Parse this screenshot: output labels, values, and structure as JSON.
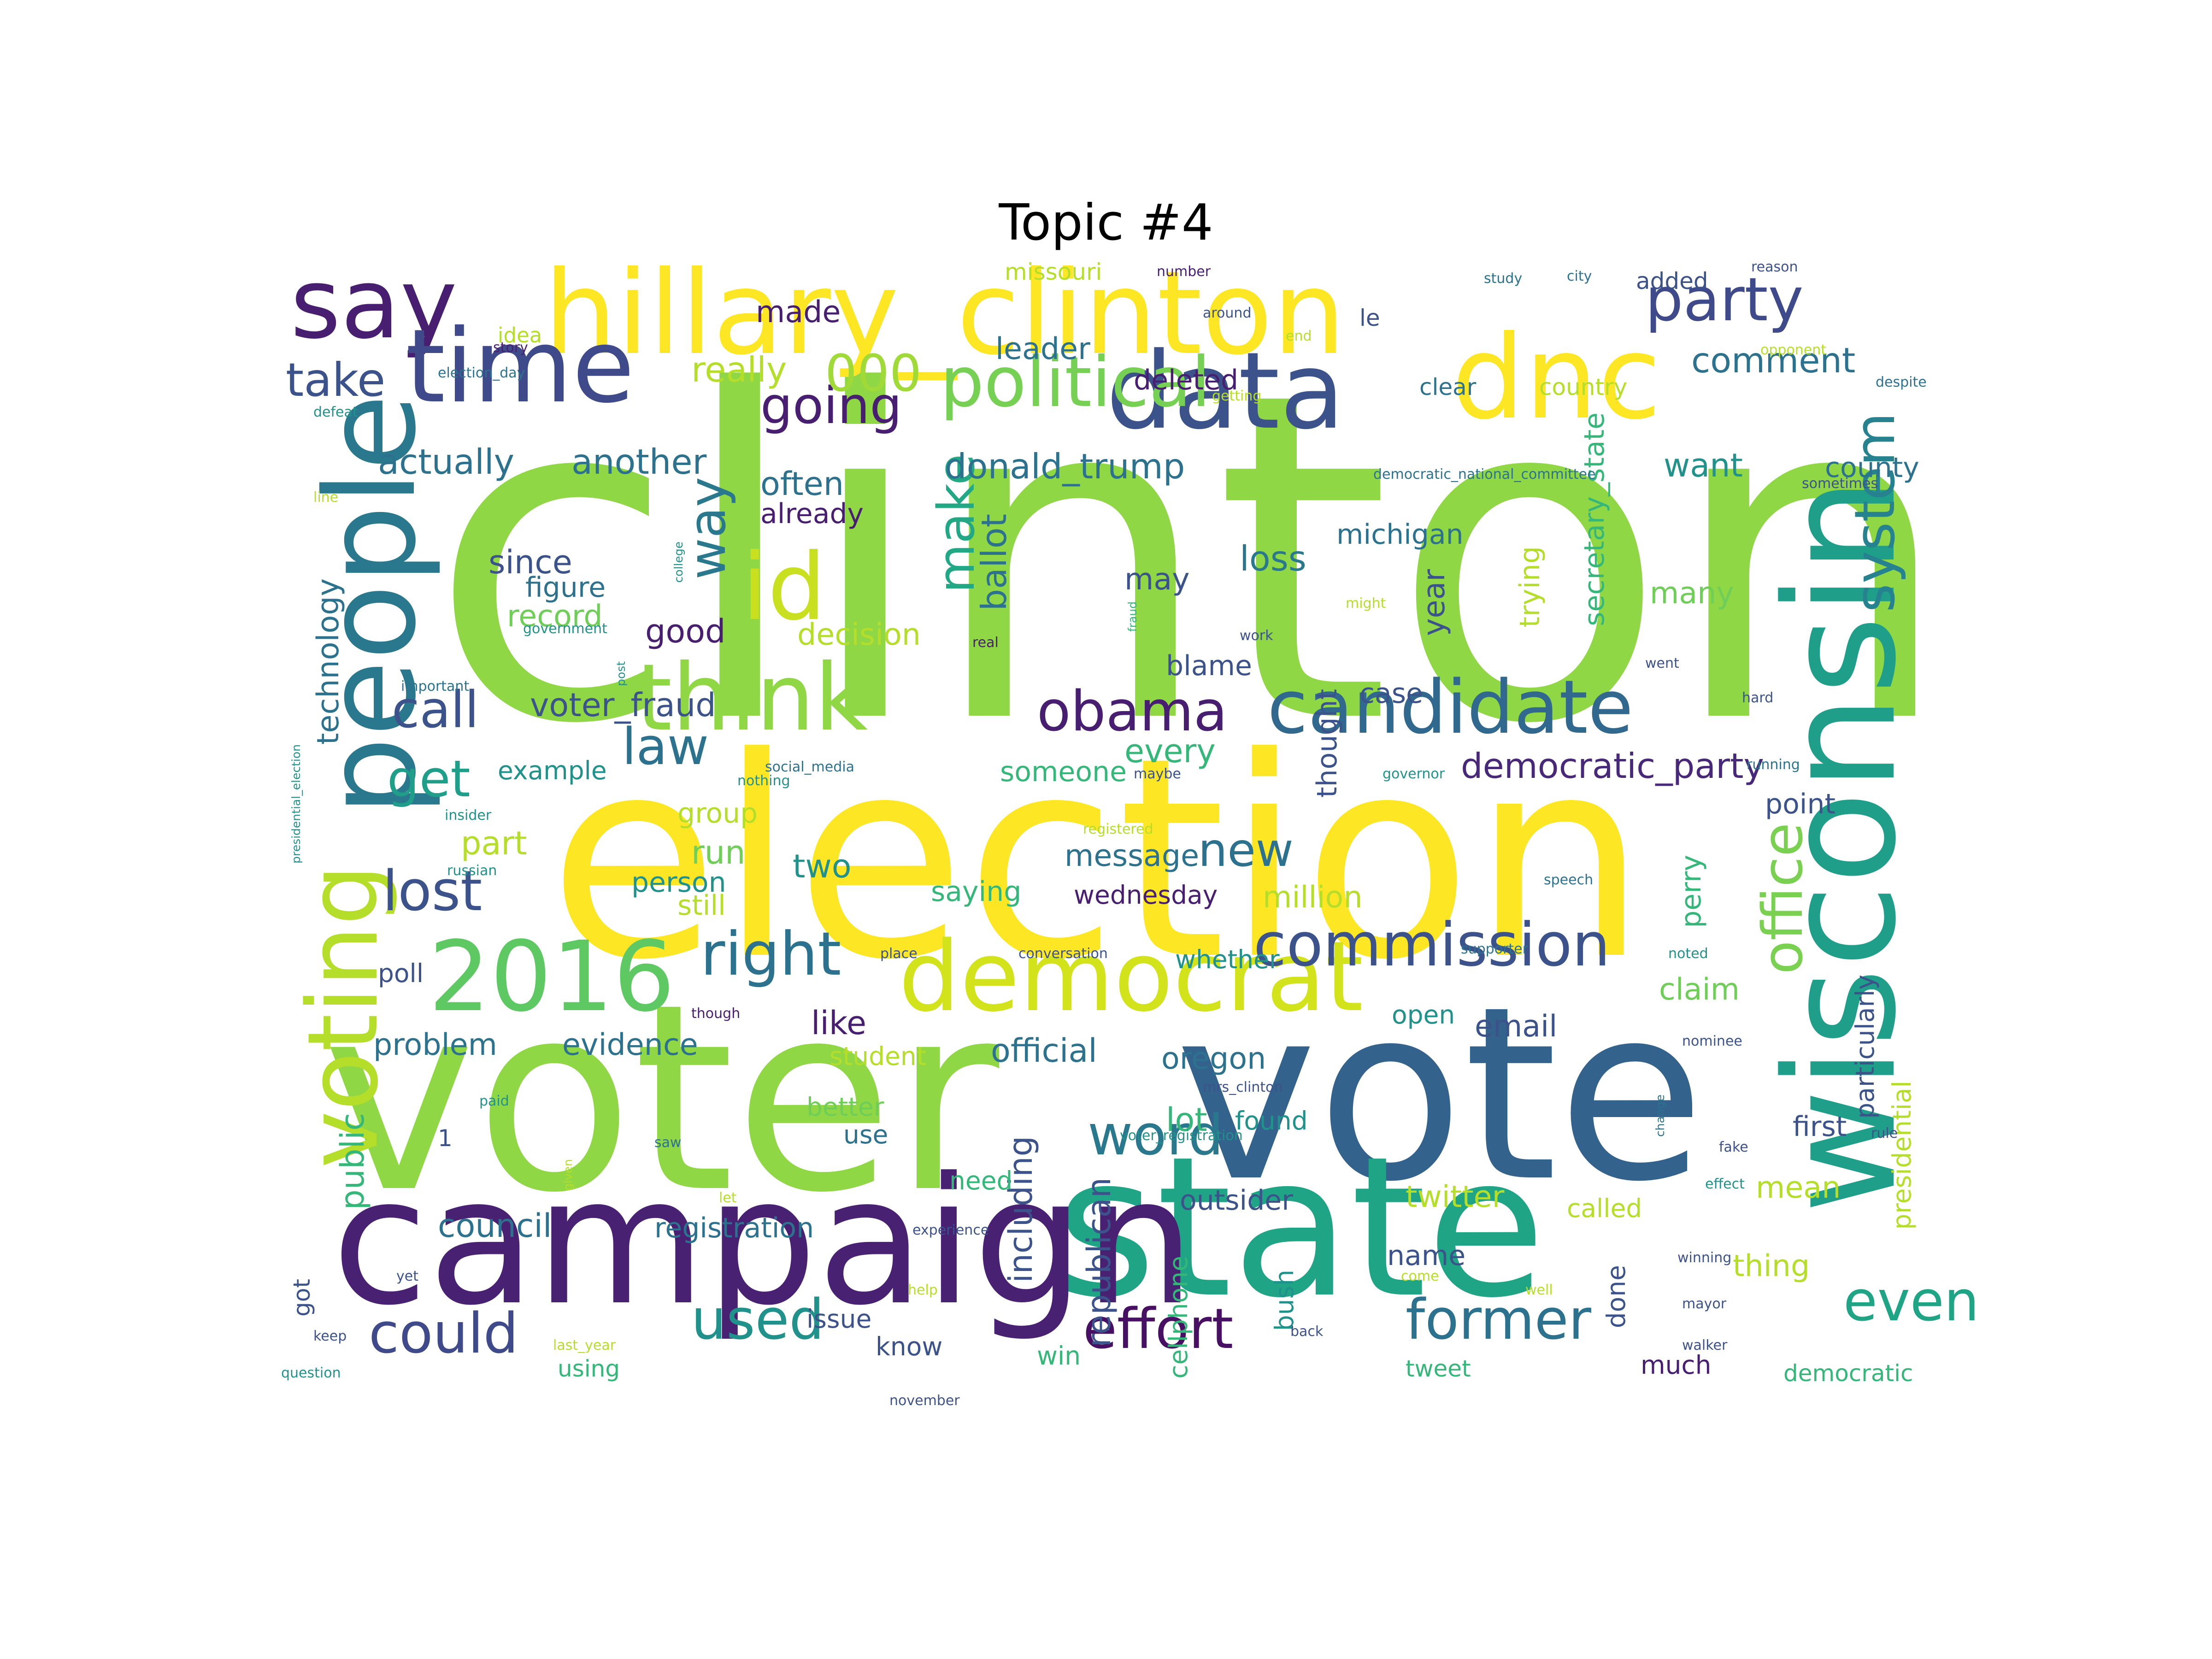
{
  "title": "Topic #4",
  "palette": [
    "#440154",
    "#482878",
    "#3e4a89",
    "#31688e",
    "#26828e",
    "#1f9e89",
    "#35b779",
    "#6ece58",
    "#b5de2b",
    "#fde725"
  ],
  "words": [
    {
      "text": "clinton",
      "color": "#8fd744"
    },
    {
      "text": "election",
      "color": "#fde725"
    },
    {
      "text": "voter",
      "color": "#8fd744"
    },
    {
      "text": "vote",
      "color": "#33638d"
    },
    {
      "text": "state",
      "color": "#20a486"
    },
    {
      "text": "campaign",
      "color": "#482173"
    },
    {
      "text": "wisconsin",
      "color": "#1f9e89"
    },
    {
      "text": "hillary_clinton",
      "color": "#fde725"
    },
    {
      "text": "people",
      "color": "#2a788e"
    },
    {
      "text": "voting",
      "color": "#b5de2b"
    },
    {
      "text": "dnc",
      "color": "#fde725"
    },
    {
      "text": "data",
      "color": "#3b528b"
    },
    {
      "text": "say",
      "color": "#481f70"
    },
    {
      "text": "time",
      "color": "#3e4a89"
    },
    {
      "text": "think",
      "color": "#8fd744"
    },
    {
      "text": "2016",
      "color": "#5ec962"
    },
    {
      "text": "democrat",
      "color": "#d2e21b"
    },
    {
      "text": "id",
      "color": "#c8e020"
    },
    {
      "text": "political",
      "color": "#75d054"
    },
    {
      "text": "candidate",
      "color": "#31688e"
    },
    {
      "text": "commission",
      "color": "#3b528b"
    },
    {
      "text": "party",
      "color": "#3e4a89"
    },
    {
      "text": "system",
      "color": "#26828e"
    },
    {
      "text": "office",
      "color": "#7ad151"
    },
    {
      "text": "right",
      "color": "#2c728e"
    },
    {
      "text": "obama",
      "color": "#481f70"
    },
    {
      "text": "used",
      "color": "#21918c"
    },
    {
      "text": "could",
      "color": "#3e4a89"
    },
    {
      "text": "effort",
      "color": "#471063"
    },
    {
      "text": "former",
      "color": "#2c728e"
    },
    {
      "text": "even",
      "color": "#20a486"
    },
    {
      "text": "word",
      "color": "#2a788e"
    },
    {
      "text": "call",
      "color": "#3b528b"
    },
    {
      "text": "law",
      "color": "#2c728e"
    },
    {
      "text": "lost",
      "color": "#3b528b"
    },
    {
      "text": "get",
      "color": "#1f9e89"
    },
    {
      "text": "going",
      "color": "#481f70"
    },
    {
      "text": "way",
      "color": "#2a788e"
    },
    {
      "text": "make",
      "color": "#22a884"
    },
    {
      "text": "new",
      "color": "#2c728e"
    },
    {
      "text": "take",
      "color": "#3b528b"
    },
    {
      "text": "000",
      "color": "#a0da39"
    },
    {
      "text": "donald_trump",
      "color": "#2c728e"
    },
    {
      "text": "democratic_party",
      "color": "#482878"
    },
    {
      "text": "ballot",
      "color": "#2c728e"
    },
    {
      "text": "loss",
      "color": "#2a788e"
    },
    {
      "text": "really",
      "color": "#b5de2b"
    },
    {
      "text": "actually",
      "color": "#2c728e"
    },
    {
      "text": "another",
      "color": "#2c728e"
    },
    {
      "text": "comment",
      "color": "#2c728e"
    },
    {
      "text": "made",
      "color": "#481f70"
    },
    {
      "text": "leader",
      "color": "#2c728e"
    },
    {
      "text": "deleted",
      "color": "#481f70"
    },
    {
      "text": "often",
      "color": "#2c728e"
    },
    {
      "text": "already",
      "color": "#481f70"
    },
    {
      "text": "since",
      "color": "#3b528b"
    },
    {
      "text": "technology",
      "color": "#2c728e"
    },
    {
      "text": "figure",
      "color": "#2c728e"
    },
    {
      "text": "record",
      "color": "#6ece58"
    },
    {
      "text": "good",
      "color": "#481f70"
    },
    {
      "text": "decision",
      "color": "#b5de2b"
    },
    {
      "text": "michigan",
      "color": "#2c728e"
    },
    {
      "text": "may",
      "color": "#3b528b"
    },
    {
      "text": "year",
      "color": "#3b528b"
    },
    {
      "text": "many",
      "color": "#6ece58"
    },
    {
      "text": "secretary_state",
      "color": "#35b779"
    },
    {
      "text": "trying",
      "color": "#b5de2b"
    },
    {
      "text": "blame",
      "color": "#3b528b"
    },
    {
      "text": "case",
      "color": "#3b528b"
    },
    {
      "text": "thought",
      "color": "#3b528b"
    },
    {
      "text": "voter_fraud",
      "color": "#3b528b"
    },
    {
      "text": "every",
      "color": "#35b779"
    },
    {
      "text": "example",
      "color": "#21918c"
    },
    {
      "text": "someone",
      "color": "#35b779"
    },
    {
      "text": "group",
      "color": "#b5de2b"
    },
    {
      "text": "part",
      "color": "#b5de2b"
    },
    {
      "text": "run",
      "color": "#6ece58"
    },
    {
      "text": "two",
      "color": "#21918c"
    },
    {
      "text": "person",
      "color": "#21918c"
    },
    {
      "text": "still",
      "color": "#b5de2b"
    },
    {
      "text": "message",
      "color": "#2c728e"
    },
    {
      "text": "saying",
      "color": "#35b779"
    },
    {
      "text": "wednesday",
      "color": "#481f70"
    },
    {
      "text": "million",
      "color": "#b5de2b"
    },
    {
      "text": "want",
      "color": "#21918c"
    },
    {
      "text": "county",
      "color": "#2c728e"
    },
    {
      "text": "point",
      "color": "#3b528b"
    },
    {
      "text": "perry",
      "color": "#35b779"
    },
    {
      "text": "claim",
      "color": "#6ece58"
    },
    {
      "text": "email",
      "color": "#3b528b"
    },
    {
      "text": "open",
      "color": "#21918c"
    },
    {
      "text": "evidence",
      "color": "#2c728e"
    },
    {
      "text": "problem",
      "color": "#2c728e"
    },
    {
      "text": "poll",
      "color": "#3b528b"
    },
    {
      "text": "like",
      "color": "#481f70"
    },
    {
      "text": "student",
      "color": "#b5de2b"
    },
    {
      "text": "official",
      "color": "#2c728e"
    },
    {
      "text": "oregon",
      "color": "#2c728e"
    },
    {
      "text": "whether",
      "color": "#21918c"
    },
    {
      "text": "including",
      "color": "#3b528b"
    },
    {
      "text": "lot",
      "color": "#35b779"
    },
    {
      "text": "found",
      "color": "#21918c"
    },
    {
      "text": "better",
      "color": "#6ece58"
    },
    {
      "text": "use",
      "color": "#2c728e"
    },
    {
      "text": "need",
      "color": "#35b779"
    },
    {
      "text": "public",
      "color": "#35b779"
    },
    {
      "text": "council",
      "color": "#2c728e"
    },
    {
      "text": "registration",
      "color": "#2c728e"
    },
    {
      "text": "outsider",
      "color": "#3b528b"
    },
    {
      "text": "twitter",
      "color": "#b5de2b"
    },
    {
      "text": "called",
      "color": "#b5de2b"
    },
    {
      "text": "mean",
      "color": "#b5de2b"
    },
    {
      "text": "first",
      "color": "#3b528b"
    },
    {
      "text": "republican",
      "color": "#3b528b"
    },
    {
      "text": "cellphone",
      "color": "#35b779"
    },
    {
      "text": "bush",
      "color": "#21918c"
    },
    {
      "text": "name",
      "color": "#3b528b"
    },
    {
      "text": "done",
      "color": "#3b528b"
    },
    {
      "text": "thing",
      "color": "#b5de2b"
    },
    {
      "text": "presidential",
      "color": "#b5de2b"
    },
    {
      "text": "particularly",
      "color": "#3b528b"
    },
    {
      "text": "issue",
      "color": "#3b528b"
    },
    {
      "text": "know",
      "color": "#3b528b"
    },
    {
      "text": "win",
      "color": "#35b779"
    },
    {
      "text": "tweet",
      "color": "#35b779"
    },
    {
      "text": "much",
      "color": "#481f70"
    },
    {
      "text": "democratic",
      "color": "#35b779"
    },
    {
      "text": "using",
      "color": "#35b779"
    },
    {
      "text": "got",
      "color": "#3b528b"
    },
    {
      "text": "1",
      "color": "#3b528b"
    },
    {
      "text": "added",
      "color": "#3b528b"
    },
    {
      "text": "missouri",
      "color": "#b5de2b"
    },
    {
      "text": "country",
      "color": "#b5de2b"
    },
    {
      "text": "clear",
      "color": "#2c728e"
    },
    {
      "text": "le",
      "color": "#3b528b"
    },
    {
      "text": "idea",
      "color": "#b5de2b"
    },
    {
      "text": "number",
      "color": "#481f70"
    },
    {
      "text": "around",
      "color": "#3b528b"
    },
    {
      "text": "end",
      "color": "#b5de2b"
    },
    {
      "text": "getting",
      "color": "#b5de2b"
    },
    {
      "text": "study",
      "color": "#2c728e"
    },
    {
      "text": "city",
      "color": "#2c728e"
    },
    {
      "text": "reason",
      "color": "#3b528b"
    },
    {
      "text": "opponent",
      "color": "#b5de2b"
    },
    {
      "text": "despite",
      "color": "#2c728e"
    },
    {
      "text": "sometimes",
      "color": "#3b528b"
    },
    {
      "text": "story",
      "color": "#481f70"
    },
    {
      "text": "election_day",
      "color": "#2c728e"
    },
    {
      "text": "defeat",
      "color": "#21918c"
    },
    {
      "text": "line",
      "color": "#b5de2b"
    },
    {
      "text": "democratic_national_committee",
      "color": "#2c728e"
    },
    {
      "text": "college",
      "color": "#21918c"
    },
    {
      "text": "government",
      "color": "#21918c"
    },
    {
      "text": "might",
      "color": "#b5de2b"
    },
    {
      "text": "fraud",
      "color": "#35b779"
    },
    {
      "text": "work",
      "color": "#3b528b"
    },
    {
      "text": "real",
      "color": "#481f70"
    },
    {
      "text": "post",
      "color": "#21918c"
    },
    {
      "text": "important",
      "color": "#2c728e"
    },
    {
      "text": "went",
      "color": "#3b528b"
    },
    {
      "text": "hard",
      "color": "#3b528b"
    },
    {
      "text": "running",
      "color": "#2c728e"
    },
    {
      "text": "governor",
      "color": "#21918c"
    },
    {
      "text": "maybe",
      "color": "#3b528b"
    },
    {
      "text": "nothing",
      "color": "#21918c"
    },
    {
      "text": "social_media",
      "color": "#2c728e"
    },
    {
      "text": "insider",
      "color": "#21918c"
    },
    {
      "text": "presidential_election",
      "color": "#21918c"
    },
    {
      "text": "russian",
      "color": "#21918c"
    },
    {
      "text": "registered",
      "color": "#b5de2b"
    },
    {
      "text": "speech",
      "color": "#2c728e"
    },
    {
      "text": "supporter",
      "color": "#2c728e"
    },
    {
      "text": "place",
      "color": "#3b528b"
    },
    {
      "text": "conversation",
      "color": "#3b528b"
    },
    {
      "text": "noted",
      "color": "#21918c"
    },
    {
      "text": "though",
      "color": "#481f70"
    },
    {
      "text": "nominee",
      "color": "#3b528b"
    },
    {
      "text": "mrs_clinton",
      "color": "#3b528b"
    },
    {
      "text": "paid",
      "color": "#21918c"
    },
    {
      "text": "saw",
      "color": "#2c728e"
    },
    {
      "text": "given",
      "color": "#b5de2b"
    },
    {
      "text": "change",
      "color": "#2c728e"
    },
    {
      "text": "voter_registration",
      "color": "#21918c"
    },
    {
      "text": "fake",
      "color": "#3b528b"
    },
    {
      "text": "rule",
      "color": "#3b528b"
    },
    {
      "text": "let",
      "color": "#b5de2b"
    },
    {
      "text": "effect",
      "color": "#21918c"
    },
    {
      "text": "experience",
      "color": "#3b528b"
    },
    {
      "text": "yet",
      "color": "#3b528b"
    },
    {
      "text": "help",
      "color": "#b5de2b"
    },
    {
      "text": "come",
      "color": "#b5de2b"
    },
    {
      "text": "well",
      "color": "#b5de2b"
    },
    {
      "text": "winning",
      "color": "#3b528b"
    },
    {
      "text": "mayor",
      "color": "#3b528b"
    },
    {
      "text": "keep",
      "color": "#3b528b"
    },
    {
      "text": "back",
      "color": "#3b528b"
    },
    {
      "text": "walker",
      "color": "#3b528b"
    },
    {
      "text": "question",
      "color": "#21918c"
    },
    {
      "text": "last_year",
      "color": "#b5de2b"
    },
    {
      "text": "november",
      "color": "#3b528b"
    }
  ]
}
